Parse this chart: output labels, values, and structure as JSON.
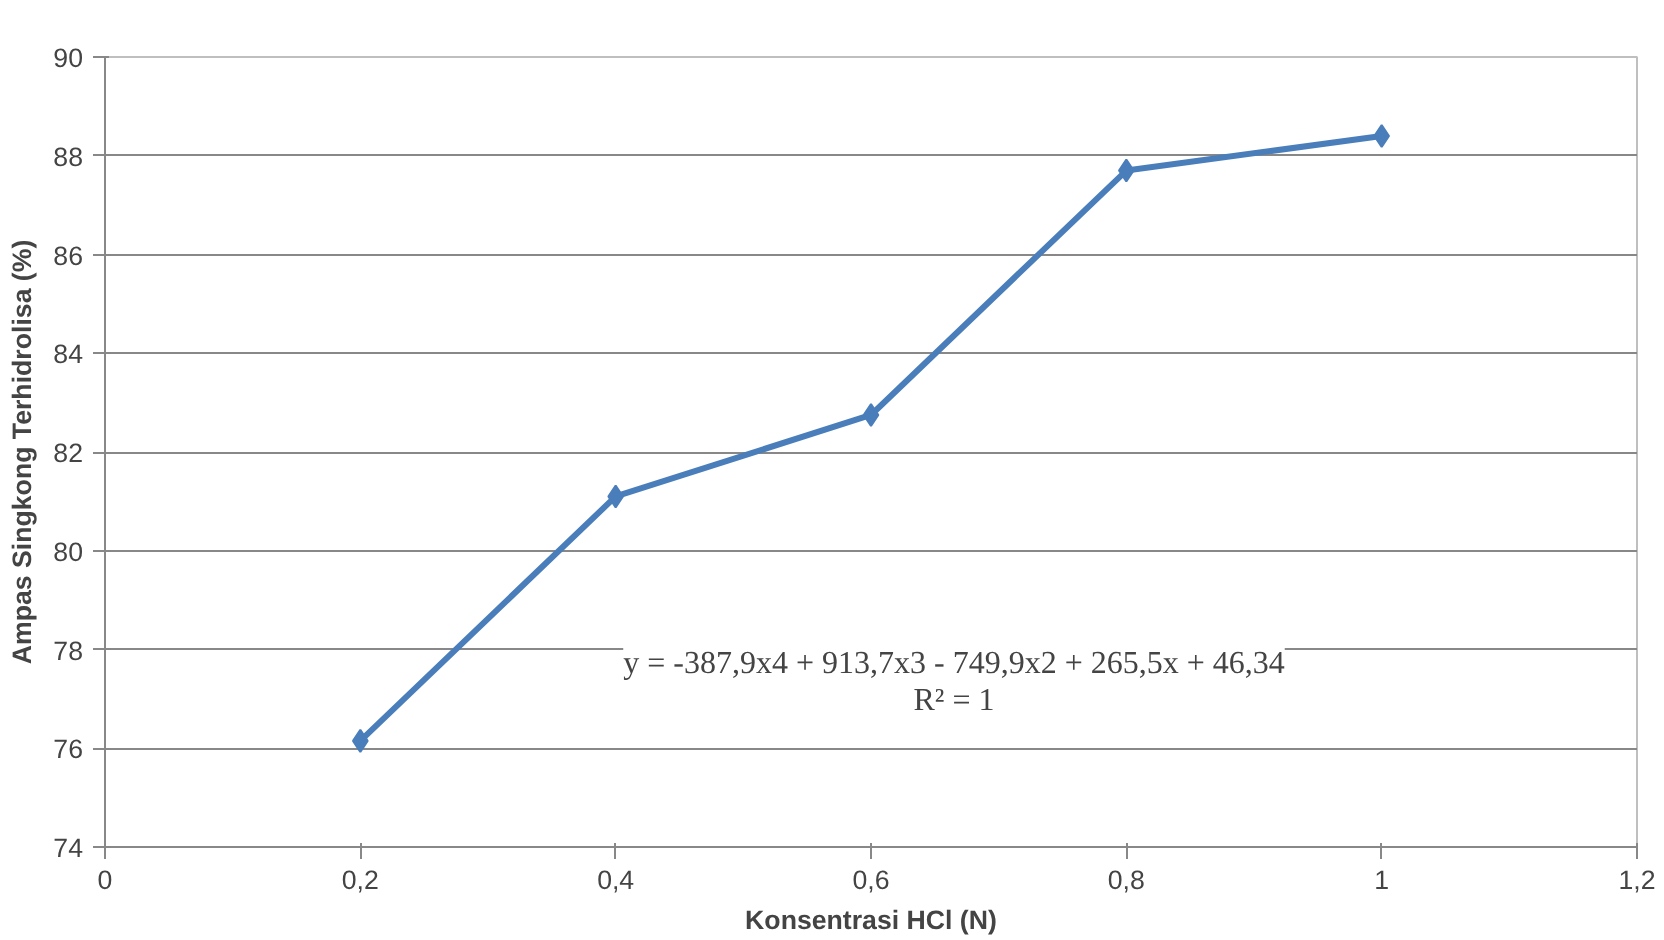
{
  "chart_data": {
    "type": "line",
    "xlabel": "Konsentrasi HCl (N)",
    "ylabel": "Ampas Singkong Terhidrolisa (%)",
    "x": [
      0.2,
      0.4,
      0.6,
      0.8,
      1.0
    ],
    "series": [
      {
        "color": "#4a7ebb",
        "values": [
          76.15,
          81.1,
          82.75,
          87.7,
          88.4
        ]
      }
    ],
    "xlim": [
      0,
      1.2
    ],
    "ylim": [
      74,
      90
    ],
    "xticks": [
      0,
      {
        "value": 0.2,
        "label": "0,2"
      },
      {
        "value": 0.4,
        "label": "0,4"
      },
      {
        "value": 0.6,
        "label": "0,6"
      },
      {
        "value": 0.8,
        "label": "0,8"
      },
      1,
      {
        "value": 1.2,
        "label": "1,2"
      }
    ],
    "yticks": [
      74,
      76,
      78,
      80,
      82,
      84,
      86,
      88,
      90
    ],
    "grid": "y",
    "marker": "diamond",
    "line_style": "solid",
    "annotations": [
      "y = -387,9x4 + 913,7x3 - 749,9x2 + 265,5x + 46,34",
      "R² = 1"
    ]
  }
}
